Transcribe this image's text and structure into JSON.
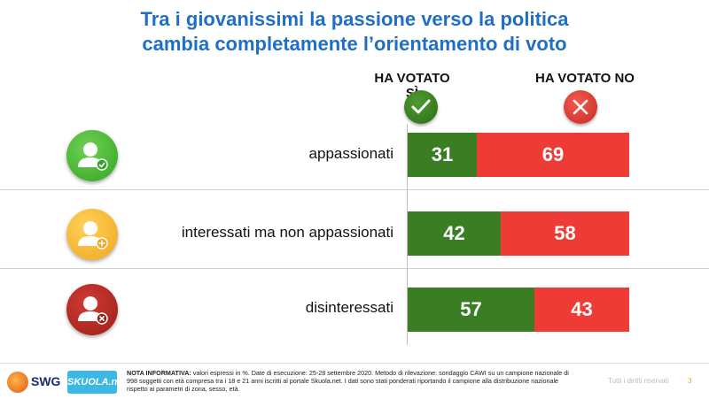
{
  "title": {
    "line1": "Tra i giovanissimi la passione verso la politica",
    "line2": "cambia completamente l’orientamento di voto"
  },
  "columns": {
    "yes_label": "HA VOTATO SÌ",
    "no_label": "HA VOTATO NO",
    "yes_icon": "check-icon",
    "no_icon": "cross-icon"
  },
  "colors": {
    "yes": "#3a7d22",
    "no": "#ee3b35",
    "title": "#1f6fc5"
  },
  "chart_data": {
    "type": "bar",
    "orientation": "horizontal-stacked-100",
    "categories": [
      "appassionati",
      "interessati ma non appassionati",
      "disinteressati"
    ],
    "series": [
      {
        "name": "HA VOTATO SÌ",
        "values": [
          31,
          42,
          57
        ]
      },
      {
        "name": "HA VOTATO NO",
        "values": [
          69,
          58,
          43
        ]
      }
    ],
    "unit": "%"
  },
  "rows": [
    {
      "label": "appassionati",
      "icon": "user-check-icon",
      "icon_color": "#3fb52d"
    },
    {
      "label": "interessati ma non appassionati",
      "icon": "user-plus-icon",
      "icon_color": "#f6b52c"
    },
    {
      "label": "disinteressati",
      "icon": "user-x-icon",
      "icon_color": "#b52a22"
    }
  ],
  "footer": {
    "brand": "SWG",
    "partner": "SKUOLA.net",
    "note_title": "NOTA INFORMATIVA:",
    "note_text": "valori espressi in %. Date di esecuzione: 25-28 settembre 2020. Metodo di rilevazione: sondaggio CAWI su un campione nazionale di 998 soggetti con età compresa tra i 18 e 21 anni iscritti al portale Skuola.net. I dati sono stati ponderati riportando il campione alla distribuzione nazionale rispetto ai parametri di zona, sesso, età.",
    "rights": "Tutti i diritti riservati",
    "page": "3"
  }
}
